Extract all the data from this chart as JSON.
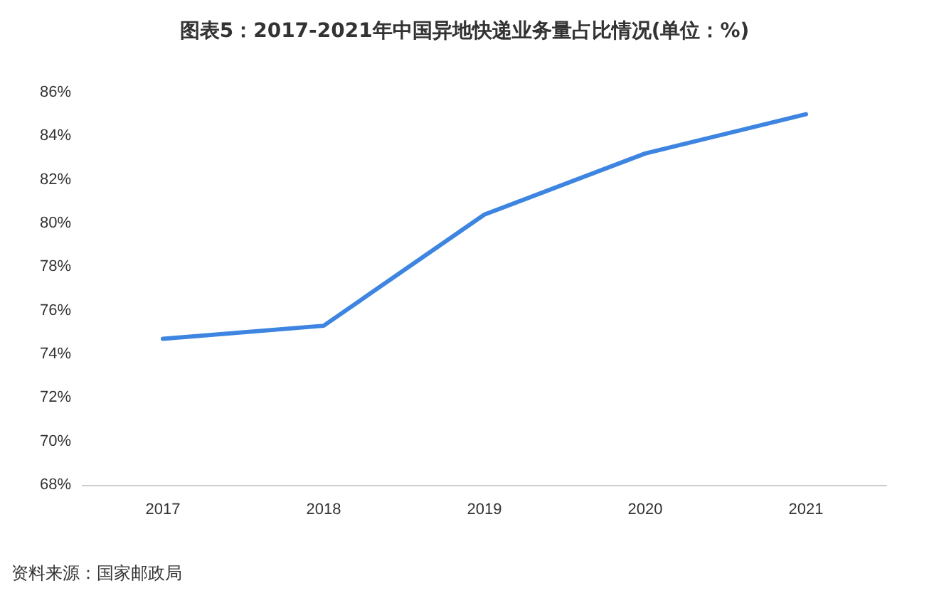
{
  "chart_data": {
    "type": "line",
    "title": "图表5：2017-2021年中国异地快递业务量占比情况(单位：%)",
    "categories": [
      "2017",
      "2018",
      "2019",
      "2020",
      "2021"
    ],
    "series": [
      {
        "color": "#3d85e0",
        "values": [
          74.7,
          75.3,
          80.4,
          83.2,
          85.0
        ]
      }
    ],
    "ylim": [
      68,
      86
    ],
    "yticks": [
      {
        "value": 68,
        "label": "68%"
      },
      {
        "value": 70,
        "label": "70%"
      },
      {
        "value": 72,
        "label": "72%"
      },
      {
        "value": 74,
        "label": "74%"
      },
      {
        "value": 76,
        "label": "76%"
      },
      {
        "value": 78,
        "label": "78%"
      },
      {
        "value": 80,
        "label": "80%"
      },
      {
        "value": 82,
        "label": "82%"
      },
      {
        "value": 84,
        "label": "84%"
      },
      {
        "value": 86,
        "label": "86%"
      }
    ],
    "grid": false,
    "marker": "none",
    "line_style": "solid",
    "annotations": [
      "资料来源：国家邮政局"
    ]
  }
}
